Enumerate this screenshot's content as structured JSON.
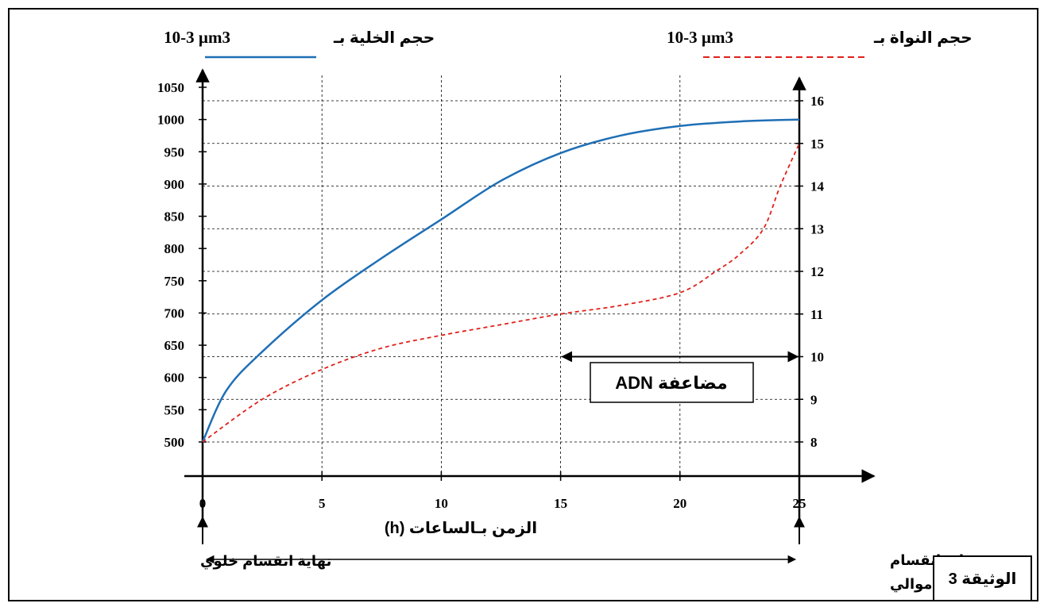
{
  "document_label": "الوثيقة 3",
  "chart_data": {
    "type": "line",
    "title": "",
    "xlabel": "الزمن بـالساعات (h)",
    "x_ticks": [
      0,
      5,
      10,
      15,
      20,
      25
    ],
    "xlim": [
      0,
      25
    ],
    "left_axis": {
      "label_text": "حجم الخلية بـ",
      "label_unit": "10-3 µm3",
      "ticks": [
        500,
        550,
        600,
        650,
        700,
        750,
        800,
        850,
        900,
        950,
        1000,
        1050
      ],
      "range": [
        500,
        1050
      ]
    },
    "right_axis": {
      "label_text": "حجم النواة بـ",
      "label_unit": "10-3 µm3",
      "ticks": [
        8,
        9,
        10,
        11,
        12,
        13,
        14,
        15,
        16
      ],
      "range": [
        8,
        16
      ]
    },
    "grid": true,
    "series": [
      {
        "legend": "حجم الخلية",
        "axis": "left",
        "style": "solid",
        "color": "#1f6fb5",
        "x": [
          0,
          1,
          2.5,
          5,
          7.5,
          10,
          12.5,
          15,
          17.5,
          20,
          22.5,
          25
        ],
        "y": [
          500,
          580,
          640,
          720,
          785,
          845,
          905,
          948,
          975,
          990,
          997,
          1000
        ]
      },
      {
        "legend": "حجم النواة",
        "axis": "right",
        "style": "dashed",
        "color": "#e0201a",
        "x": [
          0,
          2.5,
          5,
          7.5,
          10,
          12.5,
          15,
          17.5,
          20,
          21.5,
          22.5,
          23.5,
          24.2,
          25
        ],
        "y": [
          8,
          9,
          9.7,
          10.2,
          10.5,
          10.75,
          11.0,
          11.2,
          11.5,
          12.0,
          12.4,
          13.0,
          14.0,
          15.0
        ]
      }
    ],
    "annotations": {
      "adn_label": "مضاعفة ADN",
      "adn_from": 15,
      "adn_to": 25,
      "adn_level": 10,
      "start_label": "نهاية انقسام خلوي",
      "end_label_line1": "بداية انقسام",
      "end_label_line2": "خلوي موالي"
    }
  }
}
